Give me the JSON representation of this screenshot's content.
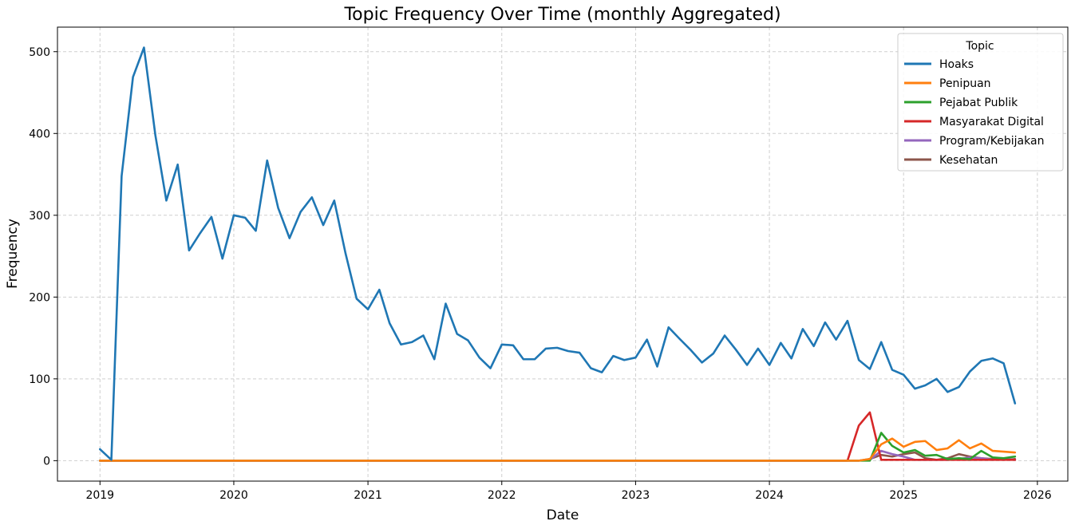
{
  "chart_data": {
    "type": "line",
    "title": "Topic Frequency Over Time (monthly Aggregated)",
    "xlabel": "Date",
    "ylabel": "Frequency",
    "xlim": [
      "2018-09-07",
      "2026-03-25"
    ],
    "ylim": [
      -25,
      530
    ],
    "x_ticks": [
      "2019",
      "2020",
      "2021",
      "2022",
      "2023",
      "2024",
      "2025",
      "2026"
    ],
    "y_ticks": [
      0,
      100,
      200,
      300,
      400,
      500
    ],
    "grid": true,
    "legend": {
      "title": "Topic",
      "placement": "top-right"
    },
    "x": [
      "2019-01",
      "2019-02",
      "2019-03",
      "2019-04",
      "2019-05",
      "2019-06",
      "2019-07",
      "2019-08",
      "2019-09",
      "2019-10",
      "2019-11",
      "2019-12",
      "2020-01",
      "2020-02",
      "2020-03",
      "2020-04",
      "2020-05",
      "2020-06",
      "2020-07",
      "2020-08",
      "2020-09",
      "2020-10",
      "2020-11",
      "2020-12",
      "2021-01",
      "2021-02",
      "2021-03",
      "2021-04",
      "2021-05",
      "2021-06",
      "2021-07",
      "2021-08",
      "2021-09",
      "2021-10",
      "2021-11",
      "2021-12",
      "2022-01",
      "2022-02",
      "2022-03",
      "2022-04",
      "2022-05",
      "2022-06",
      "2022-07",
      "2022-08",
      "2022-09",
      "2022-10",
      "2022-11",
      "2022-12",
      "2023-01",
      "2023-02",
      "2023-03",
      "2023-04",
      "2023-05",
      "2023-06",
      "2023-07",
      "2023-08",
      "2023-09",
      "2023-10",
      "2023-11",
      "2023-12",
      "2024-01",
      "2024-02",
      "2024-03",
      "2024-04",
      "2024-05",
      "2024-06",
      "2024-07",
      "2024-08",
      "2024-09",
      "2024-10",
      "2024-11",
      "2024-12",
      "2025-01",
      "2025-02",
      "2025-03",
      "2025-04",
      "2025-05",
      "2025-06",
      "2025-07",
      "2025-08",
      "2025-09",
      "2025-10",
      "2025-11"
    ],
    "series": [
      {
        "name": "Hoaks",
        "color": "#1f77b4",
        "values": [
          14,
          1,
          348,
          469,
          505,
          398,
          318,
          362,
          257,
          278,
          298,
          247,
          300,
          297,
          281,
          367,
          309,
          272,
          304,
          322,
          288,
          318,
          253,
          198,
          185,
          209,
          168,
          142,
          145,
          153,
          124,
          192,
          155,
          147,
          126,
          113,
          142,
          141,
          124,
          124,
          137,
          138,
          134,
          132,
          113,
          108,
          128,
          123,
          126,
          148,
          115,
          163,
          149,
          135,
          120,
          131,
          153,
          136,
          117,
          137,
          117,
          144,
          125,
          161,
          140,
          169,
          148,
          171,
          123,
          112,
          145,
          111,
          105,
          88,
          92,
          100,
          84,
          90,
          109,
          122,
          125,
          119,
          70
        ]
      },
      {
        "name": "Penipuan",
        "color": "#ff7f0e",
        "values": [
          0,
          0,
          0,
          0,
          0,
          0,
          0,
          0,
          0,
          0,
          0,
          0,
          0,
          0,
          0,
          0,
          0,
          0,
          0,
          0,
          0,
          0,
          0,
          0,
          0,
          0,
          0,
          0,
          0,
          0,
          0,
          0,
          0,
          0,
          0,
          0,
          0,
          0,
          0,
          0,
          0,
          0,
          0,
          0,
          0,
          0,
          0,
          0,
          0,
          0,
          0,
          0,
          0,
          0,
          0,
          0,
          0,
          0,
          0,
          0,
          0,
          0,
          0,
          0,
          0,
          0,
          0,
          0,
          0,
          2,
          20,
          27,
          17,
          23,
          24,
          13,
          15,
          25,
          15,
          21,
          12,
          11,
          10
        ]
      },
      {
        "name": "Pejabat Publik",
        "color": "#2ca02c",
        "values": [
          0,
          0,
          0,
          0,
          0,
          0,
          0,
          0,
          0,
          0,
          0,
          0,
          0,
          0,
          0,
          0,
          0,
          0,
          0,
          0,
          0,
          0,
          0,
          0,
          0,
          0,
          0,
          0,
          0,
          0,
          0,
          0,
          0,
          0,
          0,
          0,
          0,
          0,
          0,
          0,
          0,
          0,
          0,
          0,
          0,
          0,
          0,
          0,
          0,
          0,
          0,
          0,
          0,
          0,
          0,
          0,
          0,
          0,
          0,
          0,
          0,
          0,
          0,
          0,
          0,
          0,
          0,
          0,
          0,
          0,
          34,
          18,
          10,
          13,
          6,
          7,
          2,
          3,
          2,
          12,
          4,
          3,
          5
        ]
      },
      {
        "name": "Masyarakat Digital",
        "color": "#d62728",
        "values": [
          0,
          0,
          0,
          0,
          0,
          0,
          0,
          0,
          0,
          0,
          0,
          0,
          0,
          0,
          0,
          0,
          0,
          0,
          0,
          0,
          0,
          0,
          0,
          0,
          0,
          0,
          0,
          0,
          0,
          0,
          0,
          0,
          0,
          0,
          0,
          0,
          0,
          0,
          0,
          0,
          0,
          0,
          0,
          0,
          0,
          0,
          0,
          0,
          0,
          0,
          0,
          0,
          0,
          0,
          0,
          0,
          0,
          0,
          0,
          0,
          0,
          0,
          0,
          0,
          0,
          0,
          0,
          0,
          43,
          59,
          1,
          1,
          1,
          1,
          1,
          1,
          1,
          1,
          1,
          1,
          1,
          1,
          1
        ]
      },
      {
        "name": "Program/Kebijakan",
        "color": "#9467bd",
        "values": [
          0,
          0,
          0,
          0,
          0,
          0,
          0,
          0,
          0,
          0,
          0,
          0,
          0,
          0,
          0,
          0,
          0,
          0,
          0,
          0,
          0,
          0,
          0,
          0,
          0,
          0,
          0,
          0,
          0,
          0,
          0,
          0,
          0,
          0,
          0,
          0,
          0,
          0,
          0,
          0,
          0,
          0,
          0,
          0,
          0,
          0,
          0,
          0,
          0,
          0,
          0,
          0,
          0,
          0,
          0,
          0,
          0,
          0,
          0,
          0,
          0,
          0,
          0,
          0,
          0,
          0,
          0,
          0,
          0,
          1,
          12,
          8,
          5,
          1,
          1,
          1,
          1,
          2,
          4,
          3,
          1,
          2,
          1
        ]
      },
      {
        "name": "Kesehatan",
        "color": "#8c564b",
        "values": [
          0,
          0,
          0,
          0,
          0,
          0,
          0,
          0,
          0,
          0,
          0,
          0,
          0,
          0,
          0,
          0,
          0,
          0,
          0,
          0,
          0,
          0,
          0,
          0,
          0,
          0,
          0,
          0,
          0,
          0,
          0,
          0,
          0,
          0,
          0,
          0,
          0,
          0,
          0,
          0,
          0,
          0,
          0,
          0,
          0,
          0,
          0,
          0,
          0,
          0,
          0,
          0,
          0,
          0,
          0,
          0,
          0,
          0,
          0,
          0,
          0,
          0,
          0,
          0,
          0,
          0,
          0,
          0,
          0,
          2,
          7,
          5,
          8,
          10,
          3,
          1,
          3,
          8,
          5,
          3,
          2,
          1,
          2
        ]
      }
    ]
  }
}
